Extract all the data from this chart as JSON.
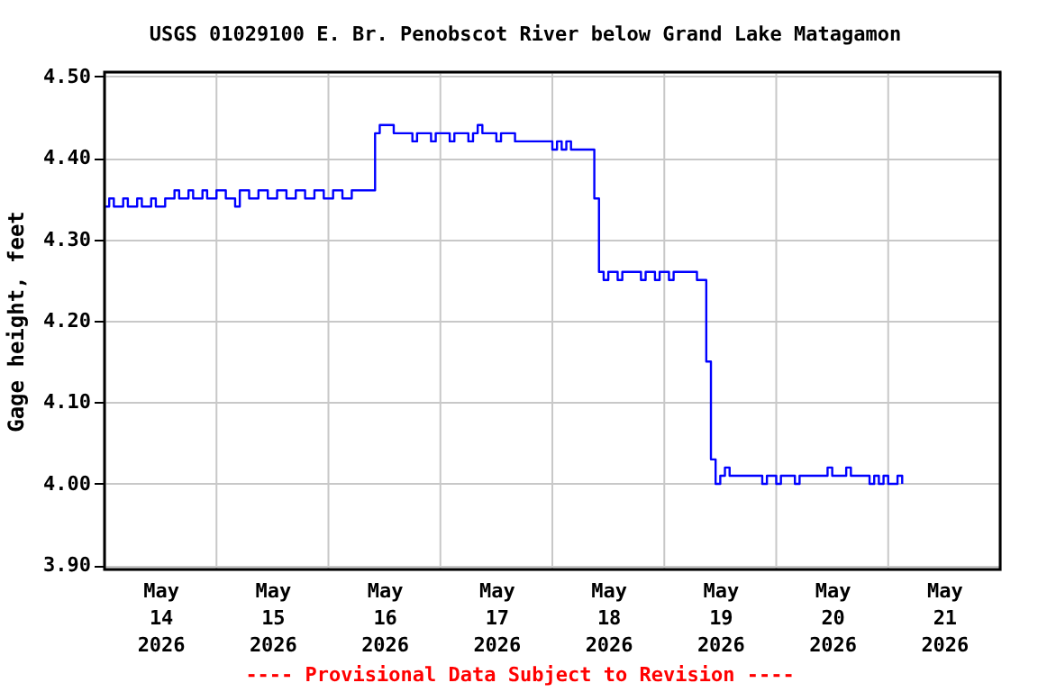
{
  "chart_data": {
    "type": "step",
    "title": "USGS 01029100 E. Br. Penobscot River below Grand Lake Matagamon",
    "ylabel": "Gage height, feet",
    "annotations": [
      "---- Provisional Data Subject to Revision ----"
    ],
    "x": [
      "2026-05-14T00:00",
      "2026-05-14T01:00",
      "2026-05-14T02:00",
      "2026-05-14T04:00",
      "2026-05-14T05:00",
      "2026-05-14T07:00",
      "2026-05-14T08:00",
      "2026-05-14T10:00",
      "2026-05-14T11:00",
      "2026-05-14T13:00",
      "2026-05-14T15:00",
      "2026-05-14T16:00",
      "2026-05-14T18:00",
      "2026-05-14T19:00",
      "2026-05-14T21:00",
      "2026-05-14T22:00",
      "2026-05-15T00:00",
      "2026-05-15T02:00",
      "2026-05-15T04:00",
      "2026-05-15T05:00",
      "2026-05-15T07:00",
      "2026-05-15T09:00",
      "2026-05-15T11:00",
      "2026-05-15T13:00",
      "2026-05-15T15:00",
      "2026-05-15T17:00",
      "2026-05-15T19:00",
      "2026-05-15T21:00",
      "2026-05-15T23:00",
      "2026-05-16T01:00",
      "2026-05-16T03:00",
      "2026-05-16T05:00",
      "2026-05-16T10:00",
      "2026-05-16T11:00",
      "2026-05-16T14:00",
      "2026-05-16T18:00",
      "2026-05-16T19:00",
      "2026-05-16T22:00",
      "2026-05-16T23:00",
      "2026-05-17T02:00",
      "2026-05-17T03:00",
      "2026-05-17T06:00",
      "2026-05-17T07:00",
      "2026-05-17T08:00",
      "2026-05-17T09:00",
      "2026-05-17T12:00",
      "2026-05-17T13:00",
      "2026-05-17T16:00",
      "2026-05-18T00:00",
      "2026-05-18T01:00",
      "2026-05-18T02:00",
      "2026-05-18T03:00",
      "2026-05-18T04:00",
      "2026-05-18T09:00",
      "2026-05-18T10:00",
      "2026-05-18T11:00",
      "2026-05-18T12:00",
      "2026-05-18T14:00",
      "2026-05-18T15:00",
      "2026-05-18T19:00",
      "2026-05-18T20:00",
      "2026-05-18T22:00",
      "2026-05-18T23:00",
      "2026-05-19T01:00",
      "2026-05-19T02:00",
      "2026-05-19T06:00",
      "2026-05-19T07:00",
      "2026-05-19T09:00",
      "2026-05-19T10:00",
      "2026-05-19T11:00",
      "2026-05-19T12:00",
      "2026-05-19T13:00",
      "2026-05-19T14:00",
      "2026-05-19T21:00",
      "2026-05-19T22:00",
      "2026-05-20T00:00",
      "2026-05-20T01:00",
      "2026-05-20T04:00",
      "2026-05-20T05:00",
      "2026-05-20T11:00",
      "2026-05-20T12:00",
      "2026-05-20T15:00",
      "2026-05-20T16:00",
      "2026-05-20T20:00",
      "2026-05-20T21:00",
      "2026-05-20T22:00",
      "2026-05-20T23:00",
      "2026-05-21T00:00",
      "2026-05-21T02:00",
      "2026-05-21T03:00"
    ],
    "series": [
      {
        "color": "#0000ff",
        "values": [
          4.34,
          4.35,
          4.34,
          4.35,
          4.34,
          4.35,
          4.34,
          4.35,
          4.34,
          4.35,
          4.36,
          4.35,
          4.36,
          4.35,
          4.36,
          4.35,
          4.36,
          4.35,
          4.34,
          4.36,
          4.35,
          4.36,
          4.35,
          4.36,
          4.35,
          4.36,
          4.35,
          4.36,
          4.35,
          4.36,
          4.35,
          4.36,
          4.43,
          4.44,
          4.43,
          4.42,
          4.43,
          4.42,
          4.43,
          4.42,
          4.43,
          4.42,
          4.43,
          4.44,
          4.43,
          4.42,
          4.43,
          4.42,
          4.41,
          4.42,
          4.41,
          4.42,
          4.41,
          4.35,
          4.26,
          4.25,
          4.26,
          4.25,
          4.26,
          4.25,
          4.26,
          4.25,
          4.26,
          4.25,
          4.26,
          4.26,
          4.25,
          4.15,
          4.03,
          4.0,
          4.01,
          4.02,
          4.01,
          4.0,
          4.01,
          4.0,
          4.01,
          4.0,
          4.01,
          4.02,
          4.01,
          4.02,
          4.01,
          4.0,
          4.01,
          4.0,
          4.01,
          4.0,
          4.01,
          4.0
        ]
      }
    ],
    "xlim": [
      "2026-05-14T00:00",
      "2026-05-22T00:00"
    ],
    "xticks": [
      {
        "value": "2026-05-14T12:00",
        "label": "May 14 2026"
      },
      {
        "value": "2026-05-15T12:00",
        "label": "May 15 2026"
      },
      {
        "value": "2026-05-16T12:00",
        "label": "May 16 2026"
      },
      {
        "value": "2026-05-17T12:00",
        "label": "May 17 2026"
      },
      {
        "value": "2026-05-18T12:00",
        "label": "May 18 2026"
      },
      {
        "value": "2026-05-19T12:00",
        "label": "May 19 2026"
      },
      {
        "value": "2026-05-20T12:00",
        "label": "May 20 2026"
      },
      {
        "value": "2026-05-21T12:00",
        "label": "May 21 2026"
      },
      {
        "value": "2026-05-15T00:00",
        "label": null
      },
      {
        "value": "2026-05-16T00:00",
        "label": null
      },
      {
        "value": "2026-05-17T00:00",
        "label": null
      },
      {
        "value": "2026-05-18T00:00",
        "label": null
      },
      {
        "value": "2026-05-19T00:00",
        "label": null
      },
      {
        "value": "2026-05-20T00:00",
        "label": null
      },
      {
        "value": "2026-05-21T00:00",
        "label": null
      }
    ],
    "ylim": [
      3.895,
      4.505
    ],
    "yticks": [
      {
        "value": 3.9,
        "label": "3.90"
      },
      {
        "value": 4.0,
        "label": "4.00"
      },
      {
        "value": 4.1,
        "label": "4.10"
      },
      {
        "value": 4.2,
        "label": "4.20"
      },
      {
        "value": 4.3,
        "label": "4.30"
      },
      {
        "value": 4.4,
        "label": "4.40"
      },
      {
        "value": 4.5,
        "label": "4.50"
      }
    ],
    "grid": true
  }
}
